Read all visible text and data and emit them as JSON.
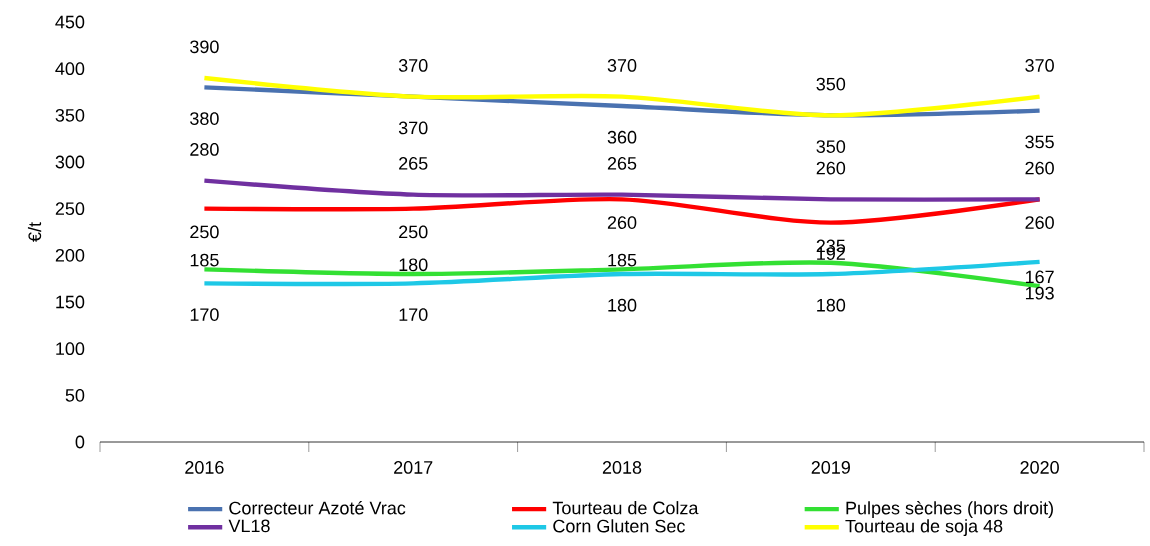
{
  "chart_data": {
    "type": "line",
    "ylabel": "€/t",
    "categories": [
      "2016",
      "2017",
      "2018",
      "2019",
      "2020"
    ],
    "series": [
      {
        "name": "Correcteur Azoté Vrac",
        "color": "#4a72b0",
        "values": [
          380,
          370,
          360,
          350,
          355
        ]
      },
      {
        "name": "Tourteau de Colza",
        "color": "#ff0000",
        "values": [
          250,
          250,
          260,
          235,
          260
        ]
      },
      {
        "name": "Pulpes sèches (hors droit)",
        "color": "#33e033",
        "values": [
          185,
          180,
          185,
          192,
          167
        ]
      },
      {
        "name": "VL18",
        "color": "#7030a0",
        "values": [
          280,
          265,
          265,
          260,
          260
        ]
      },
      {
        "name": "Corn Gluten Sec",
        "color": "#1ec8e6",
        "values": [
          170,
          170,
          180,
          180,
          193
        ]
      },
      {
        "name": "Tourteau de soja 48",
        "color": "#ffff00",
        "values": [
          390,
          370,
          370,
          350,
          370
        ]
      }
    ],
    "ylim": [
      0,
      450
    ],
    "yticks": [
      0,
      50,
      100,
      150,
      200,
      250,
      300,
      350,
      400,
      450
    ],
    "data_labels": true,
    "legend": "bottom",
    "grid": false,
    "marker": "none",
    "line_style": "solid"
  }
}
